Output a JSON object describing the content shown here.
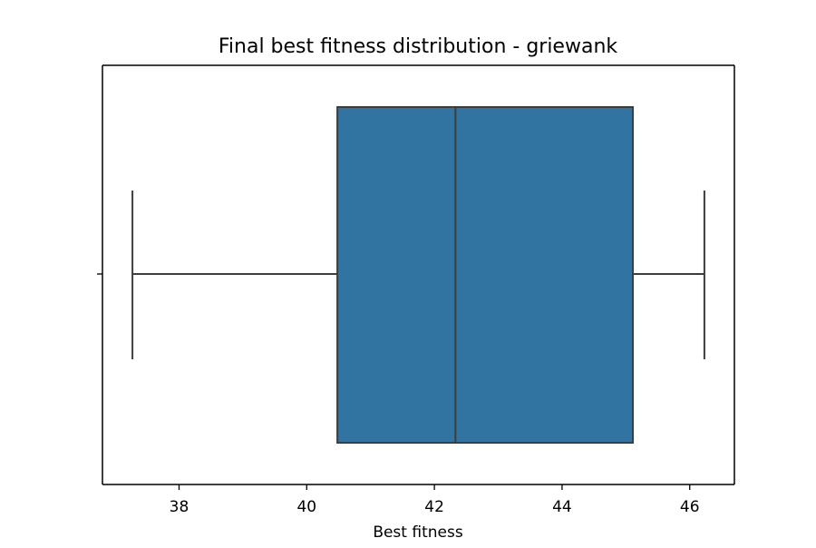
{
  "chart_data": {
    "type": "box",
    "title": "Final best fitness distribution - griewank",
    "xlabel": "Best fitness",
    "ylabel": "",
    "orientation": "horizontal",
    "xlim": [
      36.8,
      46.7
    ],
    "xticks": [
      38,
      40,
      42,
      44,
      46
    ],
    "grid": false,
    "series": [
      {
        "whisker_low": 37.27,
        "q1": 40.48,
        "median": 42.33,
        "q3": 45.11,
        "whisker_high": 46.23,
        "color": "#3274a1"
      }
    ]
  },
  "colors": {
    "box_fill": "#3274a1",
    "line": "#3d3d3d",
    "frame": "#000000"
  }
}
